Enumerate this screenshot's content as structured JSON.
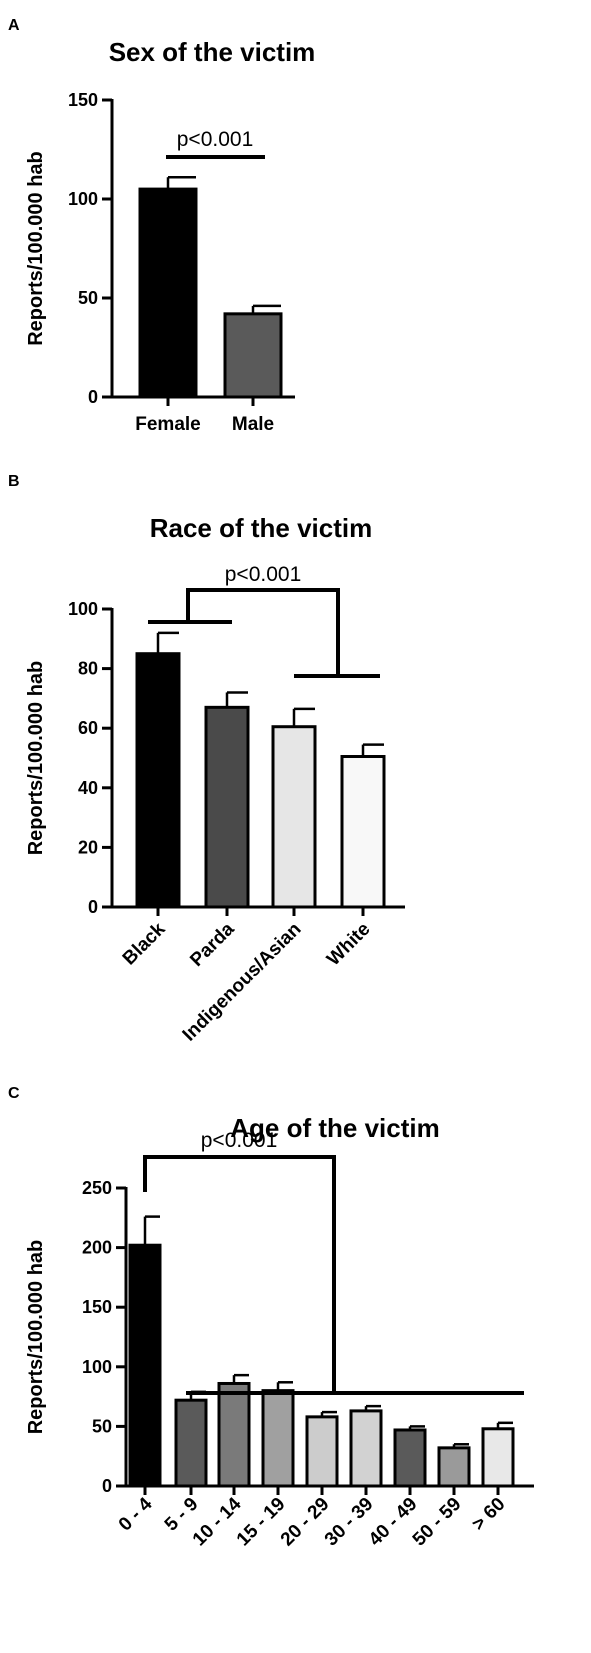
{
  "chart_data": [
    {
      "panel": "A",
      "type": "bar",
      "title": "Sex of the victim",
      "ylabel": "Reports/100.000 hab",
      "ylim": [
        0,
        150
      ],
      "yticks": [
        "0",
        "50",
        "100",
        "150"
      ],
      "categories": [
        "Female",
        "Male"
      ],
      "values": [
        105,
        42
      ],
      "errors": [
        6,
        4
      ],
      "colors": [
        "#000000",
        "#5a5a5a"
      ],
      "significance": {
        "label": "p<0.001"
      }
    },
    {
      "panel": "B",
      "type": "bar",
      "title": "Race of the victim",
      "ylabel": "Reports/100.000 hab",
      "ylim": [
        0,
        100
      ],
      "yticks": [
        "0",
        "20",
        "40",
        "60",
        "80",
        "100"
      ],
      "categories": [
        "Black",
        "Parda",
        "Indigenous/Asian",
        "White"
      ],
      "values": [
        85,
        67,
        60.5,
        50.5
      ],
      "errors": [
        7,
        5,
        6,
        4
      ],
      "colors": [
        "#000000",
        "#4a4a4a",
        "#e6e6e6",
        "#f8f8f8"
      ],
      "significance": {
        "label": "p<0.001"
      }
    },
    {
      "panel": "C",
      "type": "bar",
      "title": "Age of the victim",
      "ylabel": "Reports/100.000 hab",
      "ylim": [
        0,
        250
      ],
      "yticks": [
        "0",
        "50",
        "100",
        "150",
        "200",
        "250"
      ],
      "categories": [
        "0 - 4",
        "5 - 9",
        "10 - 14",
        "15 - 19",
        "20 - 29",
        "30 - 39",
        "40 - 49",
        "50 - 59",
        "> 60"
      ],
      "values": [
        202,
        72,
        86,
        80,
        58,
        63,
        47,
        32,
        48
      ],
      "errors": [
        24,
        7,
        7,
        7,
        4,
        4,
        3,
        3,
        5
      ],
      "colors": [
        "#000000",
        "#5a5a5a",
        "#7a7a7a",
        "#a0a0a0",
        "#cccccc",
        "#d2d2d2",
        "#5a5a5a",
        "#9a9a9a",
        "#e8e8e8"
      ],
      "significance": {
        "label": "p<0.001"
      }
    }
  ],
  "panel_letters": [
    "A",
    "B",
    "C"
  ]
}
